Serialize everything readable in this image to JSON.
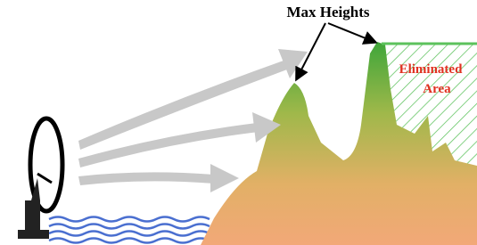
{
  "labels": {
    "max_heights": "Max Heights",
    "eliminated_line1": "Eliminated",
    "eliminated_line2": "Area"
  }
}
